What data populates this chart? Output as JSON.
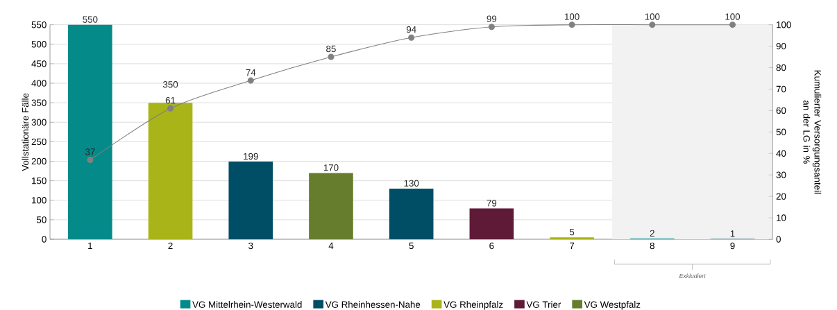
{
  "chart_data": {
    "type": "bar",
    "ylabel": "Vollstationäre Fälle",
    "y2label": "Kumulierter Versorgungsanteil an der LG in %",
    "categories": [
      "1",
      "2",
      "3",
      "4",
      "5",
      "6",
      "7",
      "8",
      "9"
    ],
    "series": [
      {
        "name": "VG Mittelrhein-Westerwald",
        "color": "#058a8a",
        "values": [
          550,
          null,
          null,
          null,
          null,
          null,
          null,
          2,
          null
        ]
      },
      {
        "name": "VG Rheinhessen-Nahe",
        "color": "#004e66",
        "values": [
          null,
          null,
          199,
          null,
          130,
          null,
          null,
          null,
          1
        ]
      },
      {
        "name": "VG Rheinpfalz",
        "color": "#a8b418",
        "values": [
          null,
          350,
          null,
          null,
          null,
          null,
          5,
          null,
          null
        ]
      },
      {
        "name": "VG Trier",
        "color": "#5f1a37",
        "values": [
          null,
          null,
          null,
          null,
          null,
          79,
          null,
          null,
          null
        ]
      },
      {
        "name": "VG Westpfalz",
        "color": "#667d2d",
        "values": [
          null,
          null,
          null,
          170,
          null,
          null,
          null,
          null,
          null
        ]
      },
      {
        "type": "line",
        "axis": "y2",
        "color": "#808080",
        "marker": "circle",
        "values": [
          37,
          61,
          74,
          85,
          94,
          99,
          100,
          100,
          100
        ]
      }
    ],
    "ylim": [
      0,
      550
    ],
    "yticks": [
      0,
      50,
      100,
      150,
      200,
      250,
      300,
      350,
      400,
      450,
      500,
      550
    ],
    "y2lim": [
      0,
      100
    ],
    "y2ticks": [
      0,
      10,
      20,
      30,
      40,
      50,
      60,
      70,
      80,
      90,
      100
    ],
    "bands": [
      {
        "axis": "x",
        "from": "8",
        "to": "9",
        "color": "#f2f2f2"
      }
    ],
    "annotations": [
      "Exkludiert"
    ],
    "data_labels": true,
    "grid": "y",
    "legend": "bottom"
  }
}
